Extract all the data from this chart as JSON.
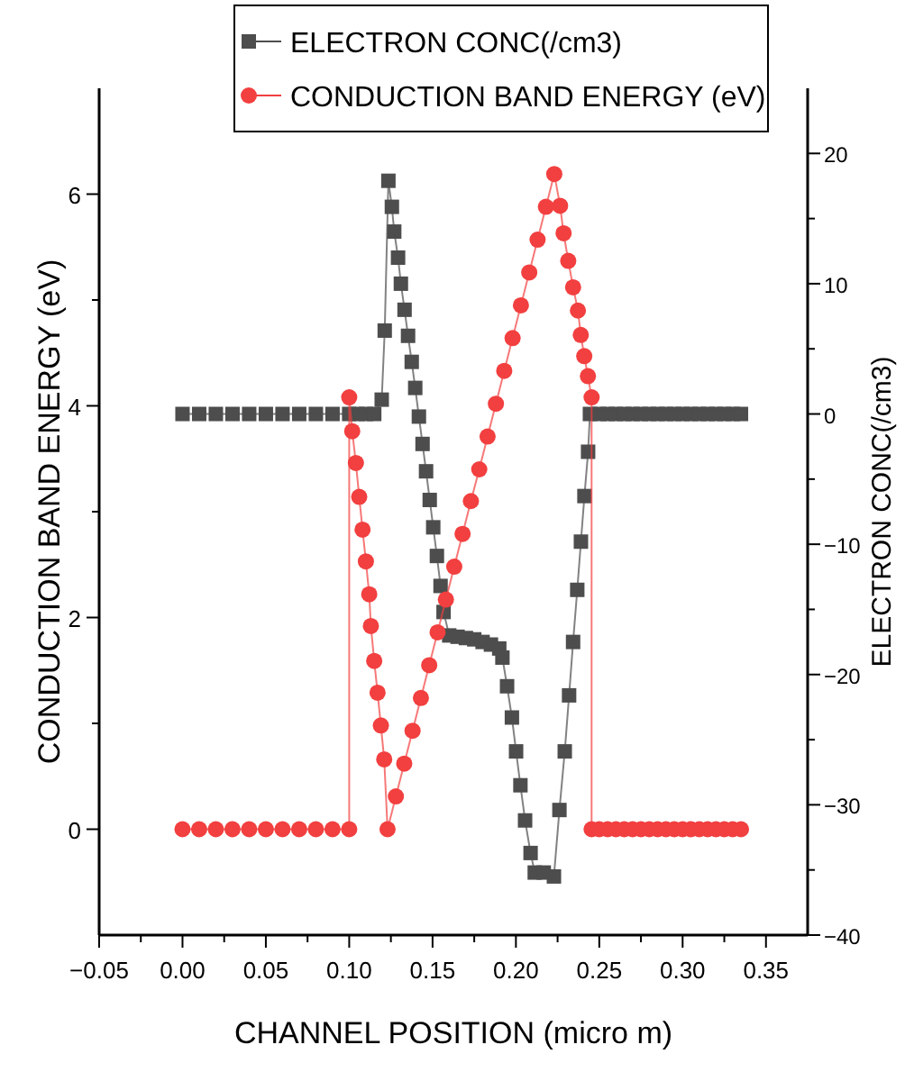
{
  "chart_data": {
    "type": "line",
    "xlabel": "CHANNEL POSITION (micro m)",
    "ylabel": "CONDUCTION BAND ENERGY (eV)",
    "y2label": "ELECTRON CONC(/cm3)",
    "xlim": [
      -0.05,
      0.375
    ],
    "xticks": [
      {
        "value": -0.05,
        "label": "−0.05"
      },
      {
        "value": -0.025,
        "label": null
      },
      {
        "value": 0,
        "label": "0.00"
      },
      {
        "value": 0.025,
        "label": null
      },
      {
        "value": 0.05,
        "label": "0.05"
      },
      {
        "value": 0.075,
        "label": null
      },
      {
        "value": 0.1,
        "label": "0.10"
      },
      {
        "value": 0.125,
        "label": null
      },
      {
        "value": 0.15,
        "label": "0.15"
      },
      {
        "value": 0.175,
        "label": null
      },
      {
        "value": 0.2,
        "label": "0.20"
      },
      {
        "value": 0.225,
        "label": null
      },
      {
        "value": 0.25,
        "label": "0.25"
      },
      {
        "value": 0.275,
        "label": null
      },
      {
        "value": 0.3,
        "label": "0.30"
      },
      {
        "value": 0.325,
        "label": null
      },
      {
        "value": 0.35,
        "label": "0.35"
      }
    ],
    "ylim": [
      -1,
      7
    ],
    "yticks": [
      0,
      {
        "value": 1,
        "label": null
      },
      2,
      {
        "value": 3,
        "label": null
      },
      4,
      {
        "value": 5,
        "label": null
      },
      6
    ],
    "y2lim": [
      -40,
      25
    ],
    "y2ticks": [
      {
        "value": -40,
        "label": "−40"
      },
      {
        "value": -35,
        "label": null
      },
      {
        "value": -30,
        "label": "−30"
      },
      {
        "value": -25,
        "label": null
      },
      {
        "value": -20,
        "label": "−20"
      },
      {
        "value": -15,
        "label": null
      },
      {
        "value": -10,
        "label": "−10"
      },
      {
        "value": -5,
        "label": null
      },
      0,
      {
        "value": 5,
        "label": null
      },
      10,
      {
        "value": 15,
        "label": null
      },
      20
    ],
    "legend": "top",
    "grid": false,
    "series": [
      {
        "name": "ELECTRON CONC(/cm3)",
        "color": "#4d4d4d",
        "axis": "y2",
        "marker": "square",
        "line_style": "solid",
        "x": [
          0,
          0.01,
          0.02,
          0.03,
          0.04,
          0.05,
          0.06,
          0.07,
          0.08,
          0.09,
          0.1,
          0.105,
          0.11,
          0.115,
          0.1195,
          0.1213,
          0.1235,
          0.1256,
          0.127,
          0.1293,
          0.131,
          0.1332,
          0.1353,
          0.1375,
          0.1396,
          0.1418,
          0.144,
          0.1461,
          0.1483,
          0.1504,
          0.1526,
          0.1548,
          0.1566,
          0.16,
          0.165,
          0.17,
          0.175,
          0.18,
          0.185,
          0.19,
          0.1919,
          0.1947,
          0.1976,
          0.2001,
          0.2027,
          0.2055,
          0.2088,
          0.2113,
          0.2167,
          0.2228,
          0.2261,
          0.2293,
          0.2319,
          0.2343,
          0.2368,
          0.239,
          0.2411,
          0.2433,
          0.2444,
          0.25,
          0.255,
          0.26,
          0.265,
          0.27,
          0.275,
          0.28,
          0.285,
          0.29,
          0.295,
          0.3,
          0.305,
          0.31,
          0.315,
          0.32,
          0.325,
          0.33,
          0.335
        ],
        "values": [
          0,
          0,
          0,
          0,
          0,
          0,
          0,
          0,
          0,
          0,
          0,
          0,
          0,
          0,
          1.1,
          6.4,
          17.9,
          15.9,
          14.0,
          12.0,
          10.0,
          8.0,
          6.0,
          4.0,
          2.0,
          -0.2,
          -2.3,
          -4.4,
          -6.6,
          -8.7,
          -10.9,
          -13.2,
          -15.2,
          -17.0,
          -17.1,
          -17.2,
          -17.3,
          -17.5,
          -17.7,
          -18.0,
          -18.7,
          -20.9,
          -23.3,
          -25.9,
          -28.5,
          -31.2,
          -33.7,
          -35.2,
          -35.2,
          -35.5,
          -30.4,
          -25.9,
          -21.6,
          -17.5,
          -13.5,
          -9.8,
          -6.3,
          -2.9,
          0,
          0,
          0,
          0,
          0,
          0,
          0,
          0,
          0,
          0,
          0,
          0,
          0,
          0,
          0,
          0,
          0,
          0,
          0
        ]
      },
      {
        "name": "CONDUCTION BAND ENERGY (eV)",
        "color": "#f23f3f",
        "marker": "circle",
        "line_style": "solid",
        "x": [
          0,
          0.01,
          0.02,
          0.03,
          0.04,
          0.05,
          0.06,
          0.07,
          0.08,
          0.09,
          0.1,
          0.1,
          0.1018,
          0.104,
          0.106,
          0.108,
          0.11,
          0.112,
          0.113,
          0.115,
          0.117,
          0.119,
          0.121,
          0.123,
          0.128,
          0.133,
          0.138,
          0.143,
          0.148,
          0.153,
          0.158,
          0.163,
          0.168,
          0.173,
          0.178,
          0.183,
          0.188,
          0.193,
          0.198,
          0.203,
          0.208,
          0.213,
          0.218,
          0.223,
          0.2265,
          0.2286,
          0.2314,
          0.2343,
          0.2372,
          0.2389,
          0.241,
          0.2432,
          0.2454,
          0.2454,
          0.25,
          0.255,
          0.26,
          0.265,
          0.27,
          0.275,
          0.28,
          0.285,
          0.29,
          0.295,
          0.3,
          0.305,
          0.31,
          0.315,
          0.32,
          0.325,
          0.33,
          0.335
        ],
        "values": [
          0,
          0,
          0,
          0,
          0,
          0,
          0,
          0,
          0,
          0,
          0,
          4.08,
          3.76,
          3.46,
          3.14,
          2.83,
          2.53,
          2.22,
          1.92,
          1.59,
          1.29,
          0.98,
          0.66,
          0,
          0.31,
          0.62,
          0.93,
          1.24,
          1.55,
          1.86,
          2.17,
          2.48,
          2.79,
          3.1,
          3.4,
          3.71,
          4.02,
          4.33,
          4.64,
          4.95,
          5.26,
          5.57,
          5.88,
          6.19,
          5.89,
          5.63,
          5.37,
          5.12,
          4.9,
          4.67,
          4.47,
          4.28,
          4.08,
          0,
          0,
          0,
          0,
          0,
          0,
          0,
          0,
          0,
          0,
          0,
          0,
          0,
          0,
          0,
          0,
          0,
          0,
          0
        ]
      }
    ]
  }
}
